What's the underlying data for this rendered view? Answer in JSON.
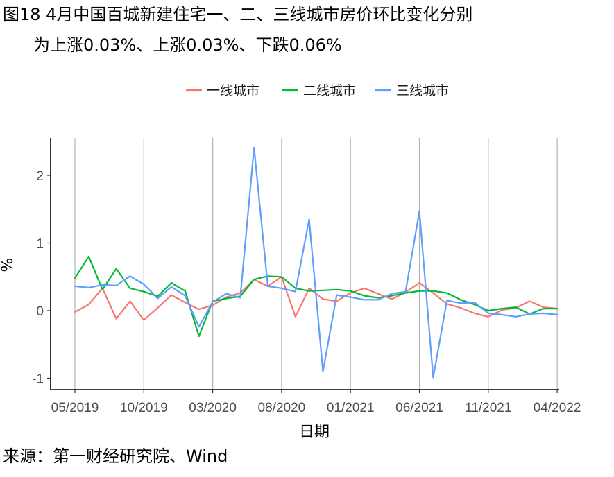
{
  "figure": {
    "title_line1": "图18 4月中国百城新建住宅一、二、三线城市房价环比变化分别",
    "title_line2": "为上涨0.03%、上涨0.03%、下跌0.06%",
    "source": "来源：第一财经研究院、Wind"
  },
  "chart_data": {
    "type": "line",
    "title": "图18 4月中国百城新建住宅一、二、三线城市房价环比变化分别为上涨0.03%、上涨0.03%、下跌0.06%",
    "xlabel": "日期",
    "ylabel": "%",
    "ylim": [
      -1.15,
      2.5
    ],
    "yticks": [
      "-1",
      "0",
      "1",
      "2"
    ],
    "xticks": [
      "05/2019",
      "10/2019",
      "03/2020",
      "08/2020",
      "01/2021",
      "06/2021",
      "11/2021",
      "04/2022"
    ],
    "grid": "vertical major",
    "legend_position": "top",
    "categories": [
      "05/2019",
      "06/2019",
      "07/2019",
      "08/2019",
      "09/2019",
      "10/2019",
      "11/2019",
      "12/2019",
      "01/2020",
      "02/2020",
      "03/2020",
      "04/2020",
      "05/2020",
      "06/2020",
      "07/2020",
      "08/2020",
      "09/2020",
      "10/2020",
      "11/2020",
      "12/2020",
      "01/2021",
      "02/2021",
      "03/2021",
      "04/2021",
      "05/2021",
      "06/2021",
      "07/2021",
      "08/2021",
      "09/2021",
      "10/2021",
      "11/2021",
      "12/2021",
      "01/2022",
      "02/2022",
      "03/2022",
      "04/2022"
    ],
    "series": [
      {
        "name": "一线城市",
        "color": "#F8766D",
        "values": [
          -0.02,
          0.09,
          0.33,
          -0.12,
          0.14,
          -0.14,
          0.04,
          0.23,
          0.12,
          0.02,
          0.08,
          0.2,
          0.26,
          0.46,
          0.36,
          0.5,
          -0.09,
          0.33,
          0.17,
          0.14,
          0.26,
          0.33,
          0.25,
          0.17,
          0.27,
          0.41,
          0.26,
          0.1,
          0.04,
          -0.04,
          -0.09,
          0.01,
          0.04,
          0.14,
          0.05,
          0.03
        ]
      },
      {
        "name": "二线城市",
        "color": "#00BA38",
        "values": [
          0.48,
          0.8,
          0.31,
          0.62,
          0.33,
          0.28,
          0.21,
          0.41,
          0.29,
          -0.38,
          0.14,
          0.18,
          0.21,
          0.46,
          0.51,
          0.5,
          0.33,
          0.29,
          0.3,
          0.31,
          0.29,
          0.22,
          0.19,
          0.22,
          0.26,
          0.29,
          0.29,
          0.26,
          0.16,
          0.09,
          0.0,
          0.03,
          0.05,
          -0.05,
          0.03,
          0.03
        ]
      },
      {
        "name": "三线城市",
        "color": "#619CFF",
        "values": [
          0.36,
          0.34,
          0.38,
          0.37,
          0.51,
          0.39,
          0.18,
          0.35,
          0.22,
          -0.24,
          0.13,
          0.25,
          0.19,
          2.41,
          0.36,
          0.33,
          0.28,
          1.35,
          -0.9,
          0.23,
          0.2,
          0.16,
          0.16,
          0.25,
          0.28,
          1.47,
          -0.99,
          0.15,
          0.11,
          0.12,
          -0.04,
          -0.06,
          -0.09,
          -0.05,
          -0.04,
          -0.06
        ]
      }
    ]
  }
}
